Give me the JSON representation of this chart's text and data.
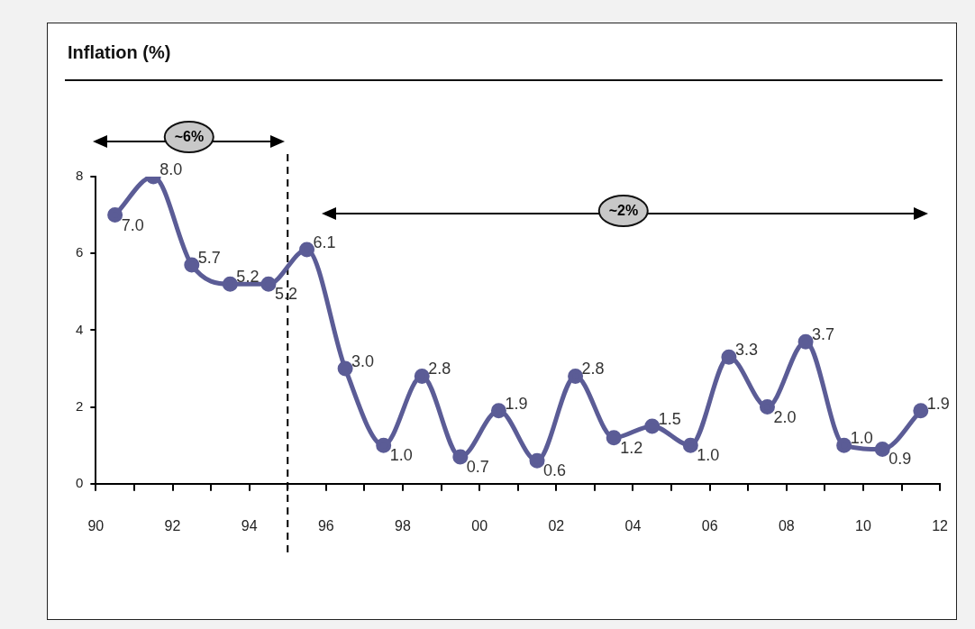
{
  "chart_data": {
    "type": "line",
    "title": "Inflation (%)",
    "x": [
      1990.5,
      1991.5,
      1992.5,
      1993.5,
      1994.5,
      1995.5,
      1996.5,
      1997.5,
      1998.5,
      1999.5,
      2000.5,
      2001.5,
      2002.5,
      2003.5,
      2004.5,
      2005.5,
      2006.5,
      2007.5,
      2008.5,
      2009.5,
      2010.5,
      2011.5
    ],
    "series": [
      {
        "color": "#5b5c96",
        "values": [
          7.0,
          8.0,
          5.7,
          5.2,
          5.2,
          6.1,
          3.0,
          1.0,
          2.8,
          0.7,
          1.9,
          0.6,
          2.8,
          1.2,
          1.5,
          1.0,
          3.3,
          2.0,
          3.7,
          1.0,
          0.9,
          1.9
        ],
        "value_labels": [
          "7.0",
          "8.0",
          "5.7",
          "5.2",
          "5.2",
          "6.1",
          "3.0",
          "1.0",
          "2.8",
          "0.7",
          "1.9",
          "0.6",
          "2.8",
          "1.2",
          "1.5",
          "1.0",
          "3.3",
          "2.0",
          "3.7",
          "1.0",
          "0.9",
          "1.9"
        ]
      }
    ],
    "xlim": [
      1990,
      2012
    ],
    "xticks": [
      {
        "value": 1990,
        "label": "90"
      },
      {
        "value": 1991,
        "label": null
      },
      {
        "value": 1992,
        "label": "92"
      },
      {
        "value": 1993,
        "label": null
      },
      {
        "value": 1994,
        "label": "94"
      },
      {
        "value": 1995,
        "label": null
      },
      {
        "value": 1996,
        "label": "96"
      },
      {
        "value": 1997,
        "label": null
      },
      {
        "value": 1998,
        "label": "98"
      },
      {
        "value": 1999,
        "label": null
      },
      {
        "value": 2000,
        "label": "00"
      },
      {
        "value": 2001,
        "label": null
      },
      {
        "value": 2002,
        "label": "02"
      },
      {
        "value": 2003,
        "label": null
      },
      {
        "value": 2004,
        "label": "04"
      },
      {
        "value": 2005,
        "label": null
      },
      {
        "value": 2006,
        "label": "06"
      },
      {
        "value": 2007,
        "label": null
      },
      {
        "value": 2008,
        "label": "08"
      },
      {
        "value": 2009,
        "label": null
      },
      {
        "value": 2010,
        "label": "10"
      },
      {
        "value": 2011,
        "label": null
      },
      {
        "value": 2012,
        "label": "12"
      }
    ],
    "ylim": [
      0,
      8
    ],
    "yticks": [
      0,
      2,
      4,
      6,
      8
    ],
    "ref_lines": [
      {
        "axis": "x",
        "value": 1995,
        "line_style": "dashed",
        "color": "#000000"
      }
    ],
    "annotations": [
      "~6%",
      "~2%"
    ],
    "grid": false,
    "legend": false,
    "marker": "circle",
    "line_style": "solid"
  }
}
